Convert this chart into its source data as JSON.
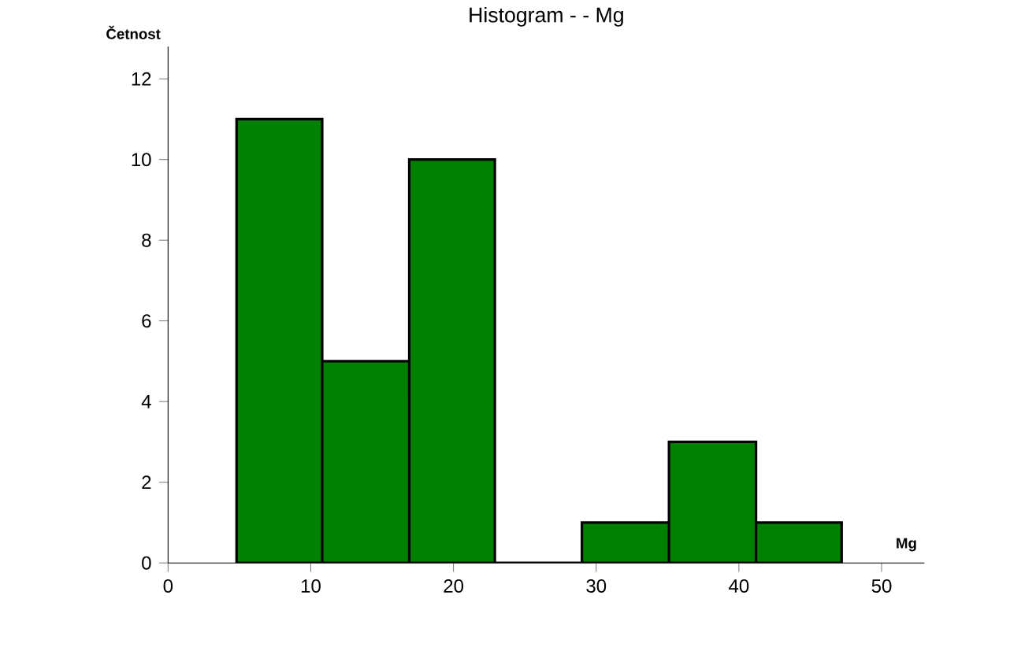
{
  "chart_data": {
    "type": "histogram",
    "title": "Histogram - - Mg",
    "xlabel": "Mg",
    "ylabel": "Četnost",
    "bins": [
      4.8,
      10.8,
      16.9,
      22.9,
      29.0,
      35.1,
      41.2,
      47.2
    ],
    "values": [
      11,
      5,
      10,
      0,
      1,
      3,
      1
    ],
    "color": "#008000",
    "xlim": [
      0,
      53
    ],
    "ylim": [
      0,
      12.8
    ],
    "xticks": [
      0,
      10,
      20,
      30,
      40,
      50
    ],
    "yticks": [
      0,
      2,
      4,
      6,
      8,
      10,
      12
    ],
    "grid": false
  }
}
